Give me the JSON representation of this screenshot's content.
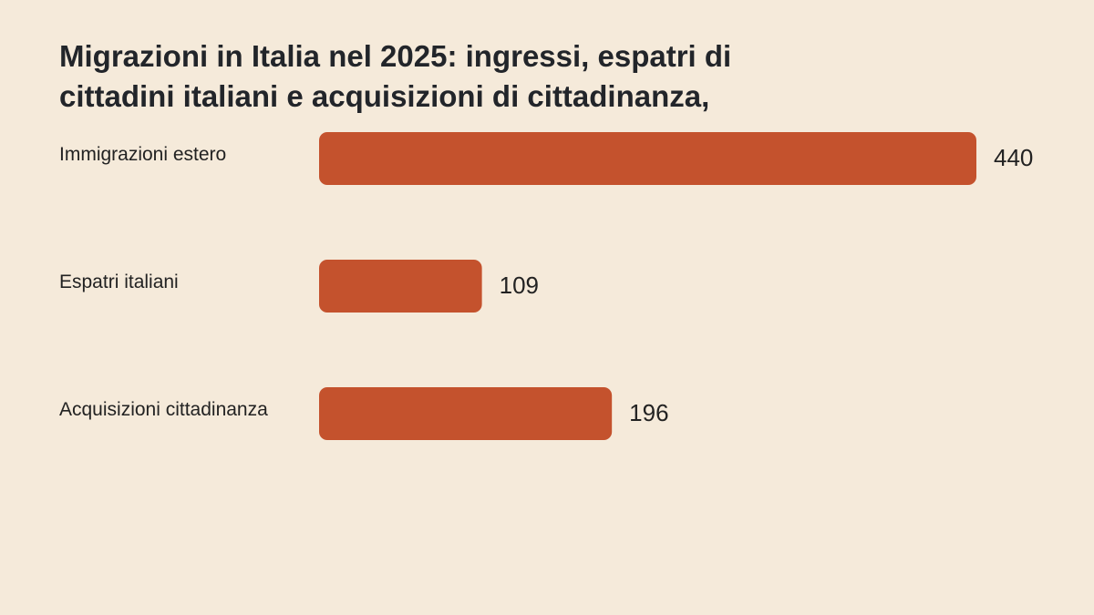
{
  "chart_data": {
    "type": "bar",
    "orientation": "horizontal",
    "title": "Migrazioni in Italia nel 2025: ingressi, espatri di cittadini italiani e acquisizioni di cittadinanza,",
    "title_lines": [
      "Migrazioni in Italia nel 2025: ingressi, espatri di",
      "cittadini italiani e acquisizioni di cittadinanza,"
    ],
    "categories": [
      "Immigrazioni estero",
      "Espatri italiani",
      "Acquisizioni cittadinanza"
    ],
    "values": [
      440,
      109,
      196
    ],
    "value_labels": [
      "440",
      "109",
      "196"
    ],
    "xlim": [
      0,
      440
    ],
    "grid": false,
    "legend": "none",
    "bar_color": "#c4522d",
    "background_color": "#f5eada",
    "text_color": "#222222"
  }
}
